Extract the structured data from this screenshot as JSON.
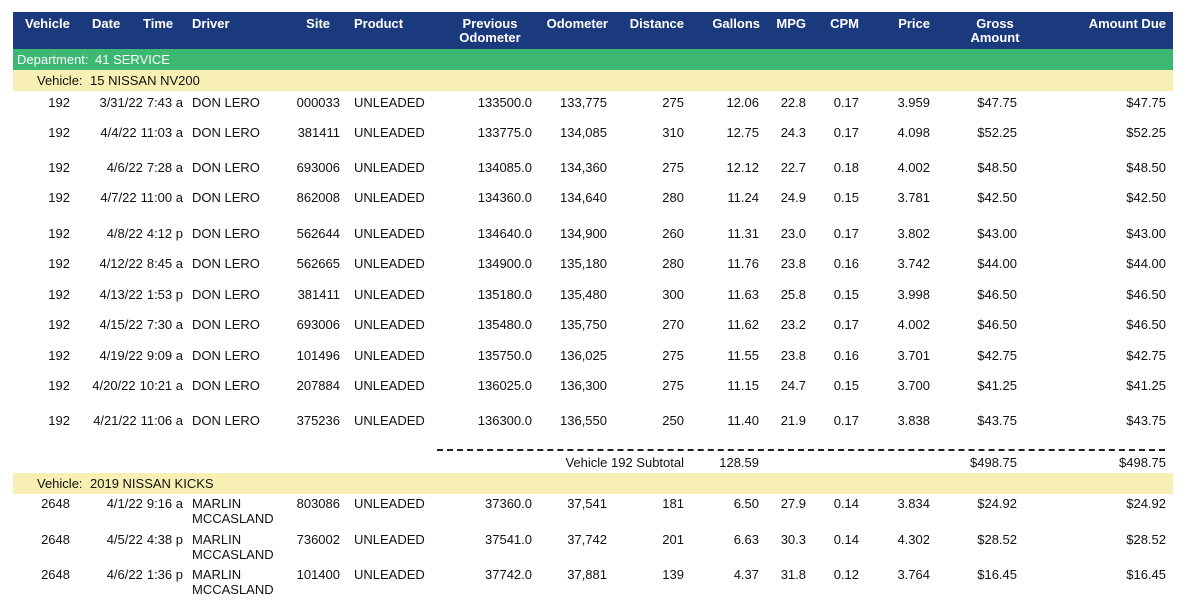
{
  "header": {
    "columns": [
      "Vehicle",
      "Date",
      "Time",
      "Driver",
      "Site",
      "Product",
      "Previous Odometer",
      "Odometer",
      "Distance",
      "Gallons",
      "MPG",
      "CPM",
      "Price",
      "Gross Amount",
      "Amount Due"
    ]
  },
  "department": {
    "label": "Department:",
    "value": "41 SERVICE"
  },
  "groups": [
    {
      "label": "Vehicle:",
      "vehicle": "15 NISSAN NV200",
      "rows": [
        [
          "192",
          "3/31/22",
          "7:43 a",
          "DON LERO",
          "000033",
          "UNLEADED",
          "133500.0",
          "133,775",
          "275",
          "12.06",
          "22.8",
          "0.17",
          "3.959",
          "$47.75",
          "$47.75"
        ],
        [
          "192",
          "4/4/22",
          "11:03 a",
          "DON LERO",
          "381411",
          "UNLEADED",
          "133775.0",
          "134,085",
          "310",
          "12.75",
          "24.3",
          "0.17",
          "4.098",
          "$52.25",
          "$52.25"
        ],
        [
          "192",
          "4/6/22",
          "7:28 a",
          "DON LERO",
          "693006",
          "UNLEADED",
          "134085.0",
          "134,360",
          "275",
          "12.12",
          "22.7",
          "0.18",
          "4.002",
          "$48.50",
          "$48.50"
        ],
        [
          "192",
          "4/7/22",
          "11:00 a",
          "DON LERO",
          "862008",
          "UNLEADED",
          "134360.0",
          "134,640",
          "280",
          "11.24",
          "24.9",
          "0.15",
          "3.781",
          "$42.50",
          "$42.50"
        ],
        [
          "192",
          "4/8/22",
          "4:12 p",
          "DON LERO",
          "562644",
          "UNLEADED",
          "134640.0",
          "134,900",
          "260",
          "11.31",
          "23.0",
          "0.17",
          "3.802",
          "$43.00",
          "$43.00"
        ],
        [
          "192",
          "4/12/22",
          "8:45 a",
          "DON LERO",
          "562665",
          "UNLEADED",
          "134900.0",
          "135,180",
          "280",
          "11.76",
          "23.8",
          "0.16",
          "3.742",
          "$44.00",
          "$44.00"
        ],
        [
          "192",
          "4/13/22",
          "1:53 p",
          "DON LERO",
          "381411",
          "UNLEADED",
          "135180.0",
          "135,480",
          "300",
          "11.63",
          "25.8",
          "0.15",
          "3.998",
          "$46.50",
          "$46.50"
        ],
        [
          "192",
          "4/15/22",
          "7:30 a",
          "DON LERO",
          "693006",
          "UNLEADED",
          "135480.0",
          "135,750",
          "270",
          "11.62",
          "23.2",
          "0.17",
          "4.002",
          "$46.50",
          "$46.50"
        ],
        [
          "192",
          "4/19/22",
          "9:09 a",
          "DON LERO",
          "101496",
          "UNLEADED",
          "135750.0",
          "136,025",
          "275",
          "11.55",
          "23.8",
          "0.16",
          "3.701",
          "$42.75",
          "$42.75"
        ],
        [
          "192",
          "4/20/22",
          "10:21 a",
          "DON LERO",
          "207884",
          "UNLEADED",
          "136025.0",
          "136,300",
          "275",
          "11.15",
          "24.7",
          "0.15",
          "3.700",
          "$41.25",
          "$41.25"
        ],
        [
          "192",
          "4/21/22",
          "11:06 a",
          "DON LERO",
          "375236",
          "UNLEADED",
          "136300.0",
          "136,550",
          "250",
          "11.40",
          "21.9",
          "0.17",
          "3.838",
          "$43.75",
          "$43.75"
        ]
      ],
      "subtotal": {
        "label": "Vehicle 192 Subtotal",
        "gallons": "128.59",
        "gross": "$498.75",
        "due": "$498.75"
      }
    },
    {
      "label": "Vehicle:",
      "vehicle": "2019 NISSAN KICKS",
      "rows": [
        [
          "2648",
          "4/1/22",
          "9:16 a",
          "MARLIN MCCASLAND",
          "803086",
          "UNLEADED",
          "37360.0",
          "37,541",
          "181",
          "6.50",
          "27.9",
          "0.14",
          "3.834",
          "$24.92",
          "$24.92"
        ],
        [
          "2648",
          "4/5/22",
          "4:38 p",
          "MARLIN MCCASLAND",
          "736002",
          "UNLEADED",
          "37541.0",
          "37,742",
          "201",
          "6.63",
          "30.3",
          "0.14",
          "4.302",
          "$28.52",
          "$28.52"
        ],
        [
          "2648",
          "4/6/22",
          "1:36 p",
          "MARLIN MCCASLAND",
          "101400",
          "UNLEADED",
          "37742.0",
          "37,881",
          "139",
          "4.37",
          "31.8",
          "0.12",
          "3.764",
          "$16.45",
          "$16.45"
        ]
      ]
    }
  ]
}
